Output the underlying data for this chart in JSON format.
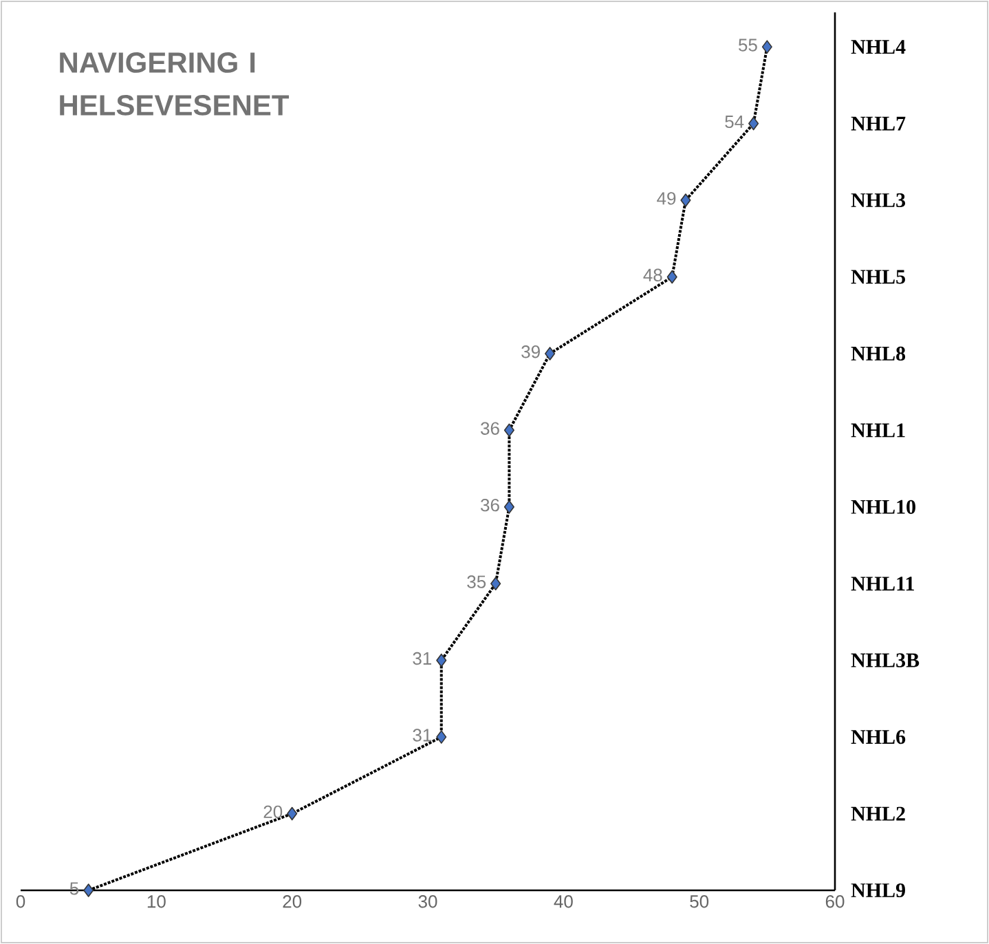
{
  "chart_data": {
    "type": "line",
    "orientation": "horizontal",
    "title": "NAVIGERING I HELSEVESENET",
    "categories": [
      "NHL4",
      "NHL7",
      "NHL3",
      "NHL5",
      "NHL8",
      "NHL1",
      "NHL10",
      "NHL11",
      "NHL3B",
      "NHL6",
      "NHL2",
      "NHL9"
    ],
    "series": [
      {
        "color": "#4472c4",
        "values": [
          55,
          54,
          49,
          48,
          39,
          36,
          36,
          35,
          31,
          31,
          20,
          5
        ]
      }
    ],
    "xlim": [
      0,
      60
    ],
    "xticks": [
      0,
      10,
      20,
      30,
      40,
      50,
      60
    ],
    "marker": "diamond",
    "line_style": "dotted",
    "data_labels": true
  }
}
